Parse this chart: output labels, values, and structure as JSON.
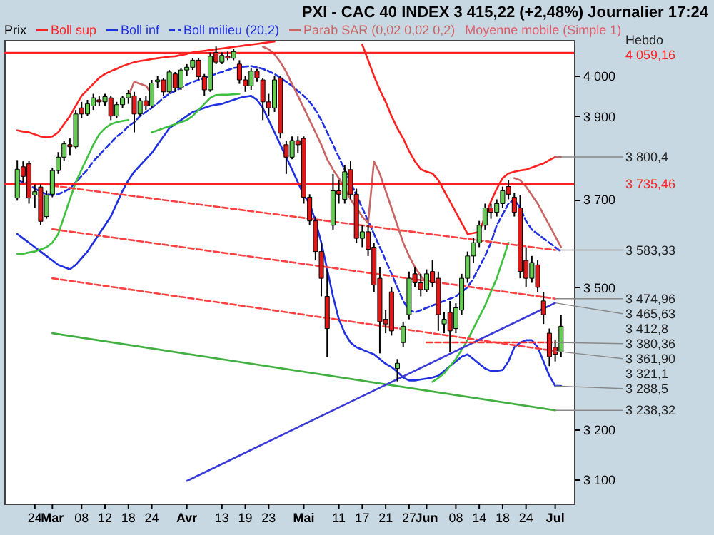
{
  "chart_data": {
    "type": "candlestick",
    "title": "PXI - CAC 40 INDEX   3 415,22 (+2,48%)   Journalier 17:24",
    "legend_title": "Prix",
    "legend": "top",
    "log": true,
    "categories": [
      null,
      null,
      null,
      "24",
      null,
      null,
      "Mar",
      null,
      null,
      null,
      null,
      "08",
      null,
      null,
      null,
      "12",
      null,
      null,
      null,
      "18",
      null,
      null,
      null,
      "24",
      null,
      null,
      null,
      null,
      null,
      "Avr",
      null,
      null,
      null,
      null,
      null,
      "13",
      null,
      null,
      null,
      "19",
      null,
      null,
      null,
      "23",
      null,
      null,
      null,
      null,
      null,
      "Mai",
      null,
      null,
      null,
      null,
      null,
      "11",
      null,
      null,
      null,
      "17",
      null,
      null,
      null,
      "21",
      null,
      null,
      null,
      "27",
      null,
      null,
      "Jun",
      null,
      null,
      null,
      null,
      "08",
      null,
      null,
      null,
      "14",
      null,
      null,
      null,
      "18",
      null,
      null,
      null,
      "24",
      null,
      null,
      null,
      null,
      "Jul",
      null
    ],
    "ohlc": [
      [
        3703,
        3793,
        3697,
        3771
      ],
      [
        3777,
        3790,
        3740,
        3754
      ],
      [
        3784,
        3792,
        3690,
        3703
      ],
      [
        3710,
        3735,
        3680,
        3718
      ],
      [
        3729,
        3735,
        3640,
        3649
      ],
      [
        3660,
        3720,
        3655,
        3710
      ],
      [
        3712,
        3775,
        3705,
        3768
      ],
      [
        3768,
        3812,
        3760,
        3800
      ],
      [
        3800,
        3840,
        3790,
        3832
      ],
      [
        3830,
        3845,
        3805,
        3825
      ],
      [
        3825,
        3915,
        3820,
        3905
      ],
      [
        3920,
        3935,
        3895,
        3905
      ],
      [
        3905,
        3940,
        3900,
        3930
      ],
      [
        3925,
        3955,
        3915,
        3945
      ],
      [
        3940,
        3950,
        3925,
        3935
      ],
      [
        3935,
        3955,
        3925,
        3948
      ],
      [
        3945,
        3950,
        3890,
        3900
      ],
      [
        3900,
        3935,
        3895,
        3928
      ],
      [
        3928,
        3950,
        3920,
        3945
      ],
      [
        3945,
        3965,
        3930,
        3955
      ],
      [
        3950,
        3960,
        3860,
        3905
      ],
      [
        3905,
        3945,
        3900,
        3938
      ],
      [
        3938,
        3950,
        3915,
        3925
      ],
      [
        3925,
        3990,
        3920,
        3982
      ],
      [
        3985,
        4000,
        3970,
        3990
      ],
      [
        3990,
        3995,
        3950,
        3960
      ],
      [
        3960,
        4015,
        3955,
        4010
      ],
      [
        4005,
        4010,
        3960,
        3970
      ],
      [
        3970,
        4020,
        3965,
        4015
      ],
      [
        4015,
        4030,
        4000,
        4022
      ],
      [
        4022,
        4045,
        4015,
        4040
      ],
      [
        4040,
        4045,
        3990,
        3998
      ],
      [
        3998,
        4005,
        3950,
        3965
      ],
      [
        3965,
        4060,
        3960,
        4050
      ],
      [
        4060,
        4075,
        4030,
        4035
      ],
      [
        4035,
        4060,
        4030,
        4052
      ],
      [
        4050,
        4062,
        4040,
        4045
      ],
      [
        4045,
        4070,
        4040,
        4062
      ],
      [
        4030,
        4040,
        3980,
        3990
      ],
      [
        3990,
        4000,
        3960,
        3975
      ],
      [
        3975,
        4020,
        3965,
        4012
      ],
      [
        4012,
        4018,
        3985,
        3995
      ],
      [
        3990,
        3995,
        3890,
        3935
      ],
      [
        3935,
        3955,
        3900,
        3920
      ],
      [
        3920,
        4000,
        3910,
        3990
      ],
      [
        3995,
        4000,
        3845,
        3858
      ],
      [
        3830,
        3840,
        3760,
        3800
      ],
      [
        3800,
        3850,
        3795,
        3840
      ],
      [
        3840,
        3850,
        3810,
        3830
      ],
      [
        3845,
        3850,
        3690,
        3705
      ],
      [
        3705,
        3712,
        3640,
        3650
      ],
      [
        3650,
        3660,
        3560,
        3580
      ],
      [
        3580,
        3600,
        3480,
        3520
      ],
      [
        3480,
        3540,
        3350,
        3410
      ],
      [
        3640,
        3760,
        3630,
        3720
      ],
      [
        3720,
        3745,
        3690,
        3712
      ],
      [
        3700,
        3780,
        3690,
        3765
      ],
      [
        3770,
        3790,
        3700,
        3712
      ],
      [
        3712,
        3725,
        3600,
        3610
      ],
      [
        3610,
        3640,
        3590,
        3625
      ],
      [
        3625,
        3640,
        3570,
        3585
      ],
      [
        3590,
        3600,
        3490,
        3505
      ],
      [
        3520,
        3545,
        3357,
        3425
      ],
      [
        3430,
        3450,
        3400,
        3420
      ],
      [
        3490,
        3500,
        3395,
        3405
      ],
      [
        3325,
        3345,
        3298,
        3336
      ],
      [
        3380,
        3425,
        3370,
        3415
      ],
      [
        3440,
        3535,
        3430,
        3520
      ],
      [
        3530,
        3545,
        3500,
        3510
      ],
      [
        3510,
        3530,
        3480,
        3495
      ],
      [
        3495,
        3540,
        3490,
        3530
      ],
      [
        3535,
        3560,
        3500,
        3510
      ],
      [
        3520,
        3535,
        3405,
        3440
      ],
      [
        3420,
        3445,
        3400,
        3430
      ],
      [
        3445,
        3470,
        3360,
        3405
      ],
      [
        3410,
        3465,
        3400,
        3455
      ],
      [
        3450,
        3530,
        3440,
        3520
      ],
      [
        3520,
        3580,
        3510,
        3570
      ],
      [
        3570,
        3610,
        3555,
        3600
      ],
      [
        3600,
        3650,
        3590,
        3640
      ],
      [
        3640,
        3690,
        3630,
        3680
      ],
      [
        3680,
        3690,
        3655,
        3670
      ],
      [
        3670,
        3700,
        3660,
        3690
      ],
      [
        3690,
        3730,
        3680,
        3720
      ],
      [
        3730,
        3745,
        3700,
        3712
      ],
      [
        3705,
        3715,
        3660,
        3670
      ],
      [
        3680,
        3710,
        3520,
        3535
      ],
      [
        3560,
        3590,
        3500,
        3520
      ],
      [
        3520,
        3570,
        3510,
        3555
      ],
      [
        3550,
        3560,
        3490,
        3500
      ],
      [
        3470,
        3490,
        3420,
        3440
      ],
      [
        3400,
        3410,
        3330,
        3350
      ],
      [
        3370,
        3385,
        3340,
        3355
      ],
      [
        3360,
        3440,
        3350,
        3415
      ]
    ],
    "ylim": [
      3053,
      4092
    ],
    "yticks": [
      {
        "value": 3100,
        "label": "3 100"
      },
      {
        "value": 3200,
        "label": "3 200"
      },
      {
        "value": 3500,
        "label": "3 500"
      },
      {
        "value": 3700,
        "label": "3 700"
      },
      {
        "value": 3900,
        "label": "3 900"
      },
      {
        "value": 4000,
        "label": "4 000"
      }
    ],
    "series": [
      {
        "name": "Boll sup",
        "type": "line",
        "color": "#ff2020",
        "values": [
          3865,
          3862,
          3860,
          3855,
          3850,
          3848,
          3850,
          3860,
          3880,
          3900,
          3925,
          3950,
          3965,
          3980,
          3995,
          4005,
          4012,
          4018,
          4025,
          4030,
          4035,
          4038,
          4040,
          4043,
          4045,
          4047,
          4049,
          4050,
          4053,
          4056,
          4060,
          4062,
          4064,
          4066,
          4068,
          4070,
          4072,
          4074,
          4076,
          4078,
          4080,
          4082,
          4084,
          4086,
          4088,
          null,
          null,
          null,
          null,
          null,
          null,
          null,
          null,
          null,
          null,
          null,
          null,
          null,
          null,
          4080,
          4040,
          4000,
          3965,
          3935,
          3900,
          3870,
          3845,
          3815,
          3790,
          3771,
          3765,
          3761,
          3745,
          3720,
          3695,
          3670,
          3645,
          3620,
          3622,
          3625,
          3660,
          3695,
          3725,
          3750,
          3761,
          3765,
          3768,
          3770,
          3775,
          3780,
          3785,
          3793,
          3800.4,
          3800.4
        ]
      },
      {
        "name": "Boll inf",
        "type": "line",
        "color": "#2030e0",
        "values": [
          3620,
          3610,
          3600,
          3590,
          3580,
          3570,
          3560,
          3550,
          3545,
          3540,
          3550,
          3565,
          3580,
          3600,
          3620,
          3640,
          3660,
          3690,
          3720,
          3745,
          3765,
          3780,
          3795,
          3810,
          3830,
          3850,
          3870,
          3880,
          3890,
          3900,
          3910,
          3915,
          3920,
          3925,
          3928,
          3930,
          3935,
          3940,
          3945,
          3948,
          3950,
          3940,
          3920,
          3890,
          3860,
          3830,
          3800,
          3770,
          3740,
          3710,
          3690,
          3650,
          3600,
          3540,
          3480,
          3430,
          3400,
          3380,
          3370,
          3365,
          3360,
          3355,
          3345,
          3335,
          3328,
          3318,
          3306,
          3300,
          3300,
          3302,
          3304,
          3306,
          3310,
          3320,
          3330,
          3340,
          3350,
          3355,
          3345,
          3335,
          3325,
          3320,
          3320,
          3322,
          3340,
          3370,
          3380,
          3385,
          3385,
          3370,
          3340,
          3310,
          3288.5,
          3288.5
        ]
      },
      {
        "name": "Boll milieu (20,2)",
        "type": "line",
        "color": "#2030e0",
        "line_style": "dashed",
        "values": [
          3745,
          3740,
          3735,
          3725,
          3718,
          3712,
          3710,
          3712,
          3718,
          3725,
          3740,
          3755,
          3770,
          3790,
          3805,
          3820,
          3835,
          3850,
          3860,
          3875,
          3885,
          3900,
          3910,
          3920,
          3932,
          3945,
          3955,
          3962,
          3970,
          3978,
          3985,
          3990,
          3995,
          4000,
          4005,
          4010,
          4015,
          4020,
          4022,
          4024,
          4025,
          4022,
          4018,
          4012,
          4005,
          3995,
          3985,
          3975,
          3962,
          3950,
          3935,
          3915,
          3890,
          3860,
          3830,
          3800,
          3770,
          3740,
          3710,
          3680,
          3650,
          3620,
          3590,
          3560,
          3530,
          3500,
          3470,
          3450,
          3445,
          3450,
          3455,
          3460,
          3465,
          3470,
          3475,
          3480,
          3490,
          3500,
          3520,
          3545,
          3570,
          3600,
          3640,
          3665,
          3690,
          3700,
          3680,
          3650,
          3630,
          3620,
          3610,
          3600,
          3590,
          3580
        ]
      },
      {
        "name": "Parab SAR (0,02 0,02 0,2)",
        "type": "line",
        "color": "#c86464",
        "values": [
          null,
          null,
          null,
          null,
          null,
          null,
          null,
          null,
          null,
          null,
          null,
          null,
          null,
          null,
          null,
          null,
          null,
          null,
          null,
          3950,
          3985,
          3980,
          3975,
          3955,
          null,
          null,
          null,
          null,
          null,
          null,
          null,
          null,
          null,
          null,
          null,
          null,
          null,
          null,
          null,
          null,
          null,
          null,
          4075,
          4068,
          4055,
          4035,
          4010,
          3980,
          3950,
          3920,
          3890,
          3860,
          3830,
          3795,
          3770,
          3750,
          3725,
          3700,
          3680,
          3660,
          3645,
          3790,
          3760,
          3720,
          3680,
          3640,
          3600,
          3570,
          3545,
          3525,
          3510,
          null,
          null,
          null,
          null,
          null,
          null,
          null,
          null,
          null,
          null,
          null,
          null,
          null,
          null,
          3750,
          3745,
          3730,
          3710,
          3690,
          3665,
          3640,
          3615,
          3590
        ]
      },
      {
        "type": "line",
        "color": "#40c040",
        "values": [
          3575,
          3575,
          3578,
          3580,
          3585,
          3590,
          3600,
          3620,
          3660,
          3700,
          3740,
          3770,
          3800,
          3830,
          3855,
          3870,
          3880,
          3885,
          3888,
          3890,
          null,
          null,
          null,
          3860,
          3865,
          3870,
          3875,
          3880,
          3885,
          3890,
          3900,
          3915,
          3930,
          3945,
          3952,
          3953,
          3953,
          3954,
          3955,
          null,
          null,
          null,
          null,
          null,
          null,
          null,
          null,
          null,
          null,
          null,
          null,
          null,
          null,
          null,
          null,
          null,
          null,
          null,
          null,
          null,
          null,
          null,
          null,
          null,
          null,
          null,
          null,
          null,
          null,
          null,
          null,
          3297,
          3305,
          3315,
          3330,
          3345,
          3365,
          3385,
          3410,
          3435,
          3460,
          3490,
          3520,
          3560,
          3600,
          null,
          null,
          null,
          null,
          null,
          null,
          null,
          null,
          null
        ]
      },
      {
        "type": "line",
        "color": "#ff4040",
        "line_style": "dashed",
        "x": [
          "Mar",
          "Jul"
        ],
        "values": [
          3732,
          3583.33
        ]
      },
      {
        "type": "line",
        "color": "#ff4040",
        "line_style": "dashed",
        "x": [
          "Mar",
          "Jul"
        ],
        "values": [
          3631,
          3474.96
        ]
      },
      {
        "type": "line",
        "color": "#ff4040",
        "line_style": "dashed",
        "x": [
          "Mar",
          "Jul"
        ],
        "values": [
          3520,
          3361.9
        ]
      },
      {
        "type": "line",
        "color": "#40b040",
        "x": [
          "Mar",
          "Jul"
        ],
        "values": [
          3400,
          3238.32
        ]
      },
      {
        "type": "line",
        "color": "#3a3ad8",
        "x": [
          "Avr",
          "Jul"
        ],
        "values": [
          3097,
          3465.63
        ]
      },
      {
        "type": "line",
        "color": "#ff3030",
        "line_style": "dashed",
        "x": [
          "Jun",
          "Jul"
        ],
        "values": [
          3380.36,
          3380.36
        ]
      }
    ],
    "ref_lines": [
      {
        "axis": "y",
        "value": 4059.16,
        "label": "4 059,16",
        "color": "#ff2020"
      },
      {
        "axis": "y",
        "value": 3735.46,
        "label": "3 735,46",
        "color": "#ff2020"
      }
    ],
    "annotations": [
      "Moyenne mobile (Simple 1)",
      "Hebdo",
      {
        "text": "3 800,4",
        "x": "Jul",
        "y": 3800.4
      },
      {
        "text": "3 583,33",
        "x": "Jul",
        "y": 3583.33
      },
      {
        "text": "3 474,96",
        "x": "Jul",
        "y": 3474.96
      },
      {
        "text": "3 465,63",
        "x": "Jul",
        "y": 3465.63
      },
      "3 412,8",
      {
        "text": "3 380,36",
        "x": "Jul",
        "y": 3380.36
      },
      {
        "text": "3 361,90",
        "x": "Jul",
        "y": 3361.9
      },
      "3 321,1",
      {
        "text": "3 288,5",
        "x": "Jul",
        "y": 3288.5
      },
      {
        "text": "3 238,32",
        "x": "Jul",
        "y": 3238.32
      }
    ]
  }
}
